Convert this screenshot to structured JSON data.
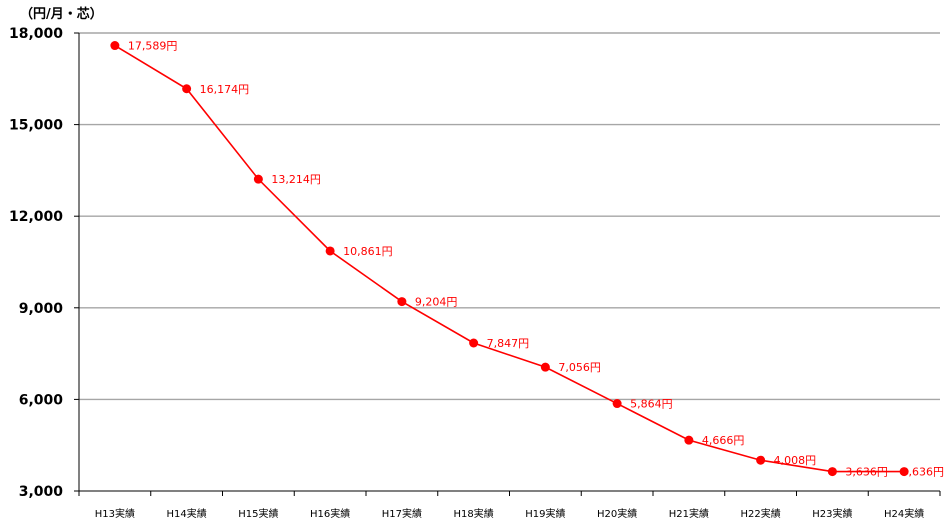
{
  "chart_data": {
    "type": "line",
    "unit_label": "（円/月・芯）",
    "categories": [
      "H13実績",
      "H14実績",
      "H15実績",
      "H16実績",
      "H17実績",
      "H18実績",
      "H19実績",
      "H20実績",
      "H21実績",
      "H22実績",
      "H23実績",
      "H24実績"
    ],
    "series": [
      {
        "values": [
          17589,
          16174,
          13214,
          10861,
          9204,
          7847,
          7056,
          5864,
          4666,
          4008,
          3636,
          3636
        ],
        "data_labels": [
          "17,589円",
          "16,174円",
          "13,214円",
          "10,861円",
          "9,204円",
          "7,847円",
          "7,056円",
          "5,864円",
          "4,666円",
          "4,008円",
          "3,636円",
          "3,636円"
        ],
        "color": "#ff0000"
      }
    ],
    "yticks": [
      3000,
      6000,
      9000,
      12000,
      15000,
      18000
    ],
    "ytick_labels": [
      "3,000",
      "6,000",
      "9,000",
      "12,000",
      "15,000",
      "18,000"
    ],
    "ylim": [
      3000,
      18000
    ],
    "grid": true,
    "grid_color": "#a6a6a6",
    "axis_color": "#000000",
    "legend": "none"
  }
}
